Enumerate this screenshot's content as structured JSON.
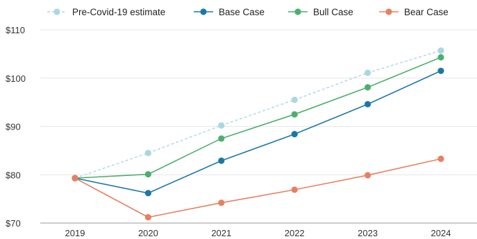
{
  "chart_data": {
    "type": "line",
    "title": "",
    "xlabel": "",
    "ylabel": "",
    "categories": [
      "2019",
      "2020",
      "2021",
      "2022",
      "2023",
      "2024"
    ],
    "ylim": [
      70,
      110
    ],
    "yticks": [
      70,
      80,
      90,
      100,
      110
    ],
    "ytick_labels": [
      "$70",
      "$80",
      "$90",
      "$100",
      "$110"
    ],
    "grid": "horizontal",
    "legend_position": "top",
    "series": [
      {
        "name": "Pre-Covid-19 estimate",
        "color": "#a9d7e3",
        "dashed": true,
        "values": [
          79.3,
          84.5,
          90.2,
          95.5,
          101.1,
          105.7
        ]
      },
      {
        "name": "Base Case",
        "color": "#1a78a8",
        "dashed": false,
        "values": [
          79.3,
          76.2,
          82.9,
          88.4,
          94.6,
          101.5
        ]
      },
      {
        "name": "Bull Case",
        "color": "#4caf6e",
        "dashed": false,
        "values": [
          79.3,
          80.1,
          87.5,
          92.5,
          98.1,
          104.3
        ]
      },
      {
        "name": "Bear Case",
        "color": "#e8805f",
        "dashed": false,
        "values": [
          79.3,
          71.2,
          74.2,
          76.9,
          79.9,
          83.3
        ]
      }
    ]
  }
}
